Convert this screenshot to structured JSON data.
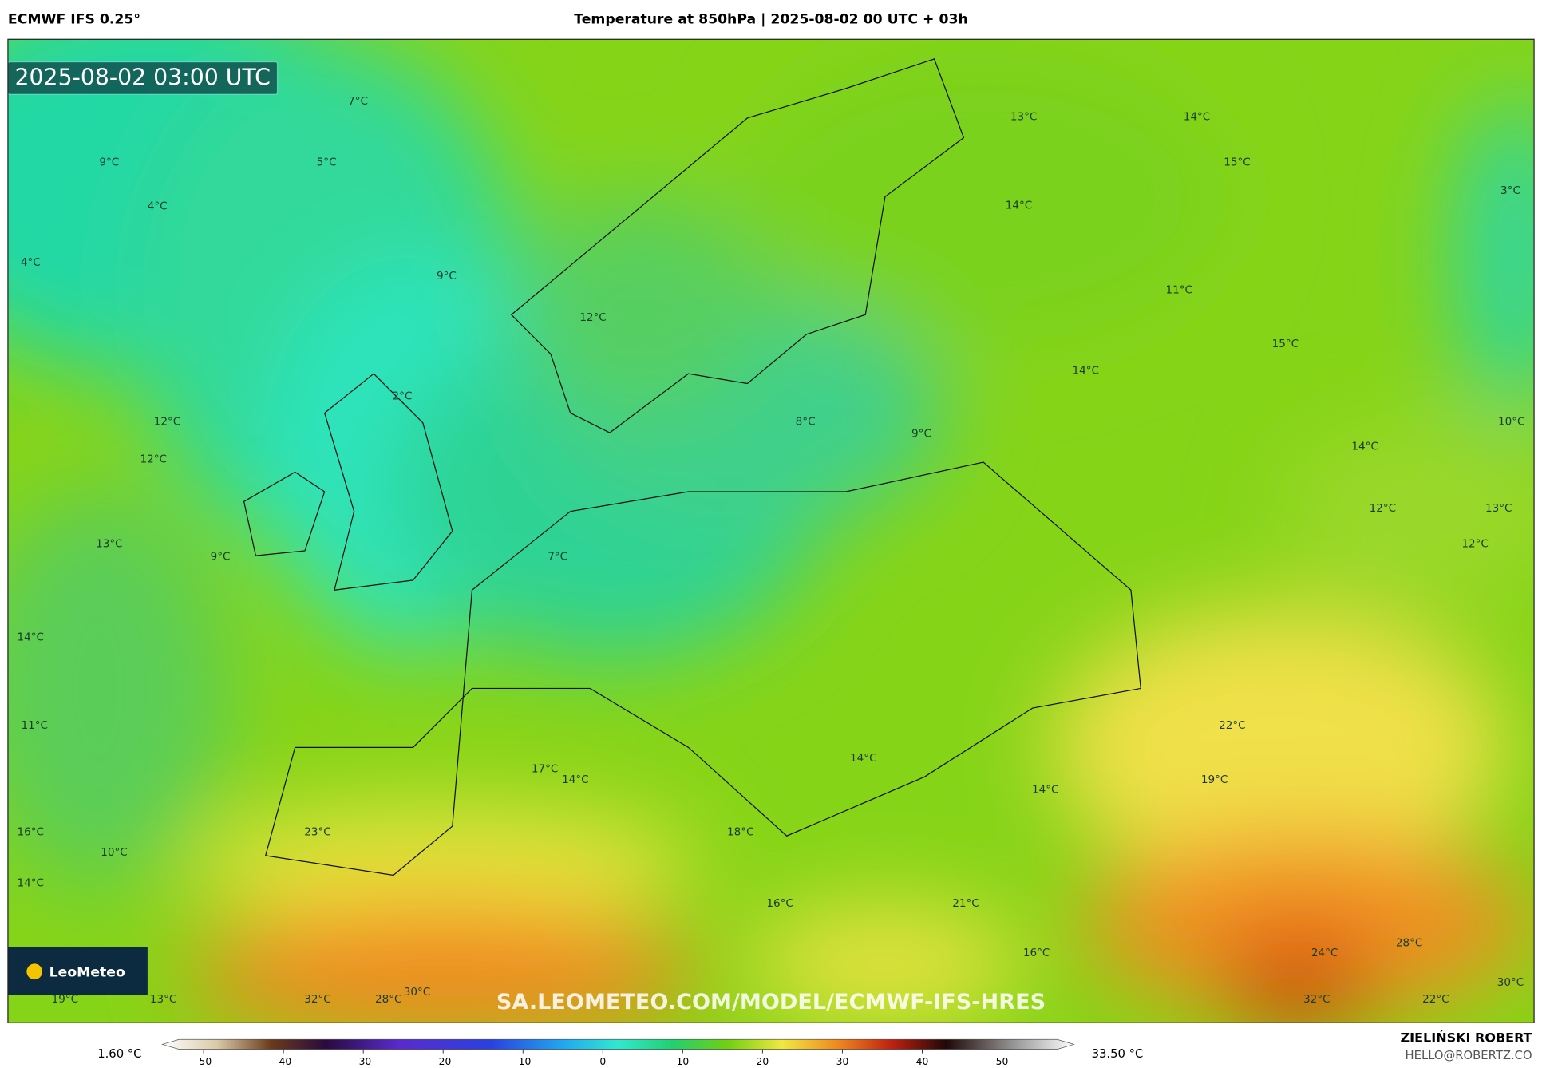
{
  "header": {
    "model": "ECMWF IFS 0.25°",
    "title": "Temperature at 850hPa | 2025-08-02 00 UTC + 03h"
  },
  "map": {
    "valid_time": "2025-08-02 03:00 UTC",
    "labels": [
      "7°C",
      "5°C",
      "9°C",
      "4°C",
      "4°C",
      "9°C",
      "12°C",
      "13°C",
      "14°C",
      "15°C",
      "14°C",
      "3°C",
      "11°C",
      "15°C",
      "14°C",
      "2°C",
      "12°C",
      "12°C",
      "8°C",
      "9°C",
      "10°C",
      "14°C",
      "12°C",
      "13°C",
      "12°C",
      "13°C",
      "9°C",
      "7°C",
      "14°C",
      "11°C",
      "22°C",
      "17°C",
      "14°C",
      "14°C",
      "19°C",
      "14°C",
      "16°C",
      "23°C",
      "18°C",
      "10°C",
      "14°C",
      "16°C",
      "21°C",
      "16°C",
      "24°C",
      "28°C",
      "30°C",
      "19°C",
      "13°C",
      "32°C",
      "28°C",
      "30°C",
      "32°C",
      "22°C"
    ],
    "watermark": "SA.LEOMETEO.COM/MODEL/ECMWF-IFS-HRES",
    "logo": "LeoMeteo"
  },
  "colorbar": {
    "min_label": "1.60 °C",
    "max_label": "33.50 °C",
    "ticks": [
      -50,
      -40,
      -30,
      -20,
      -10,
      0,
      10,
      20,
      30,
      40,
      50
    ]
  },
  "credits": {
    "author": "ZIELIŃSKI ROBERT",
    "email": "HELLO@ROBERTZ.CO"
  }
}
